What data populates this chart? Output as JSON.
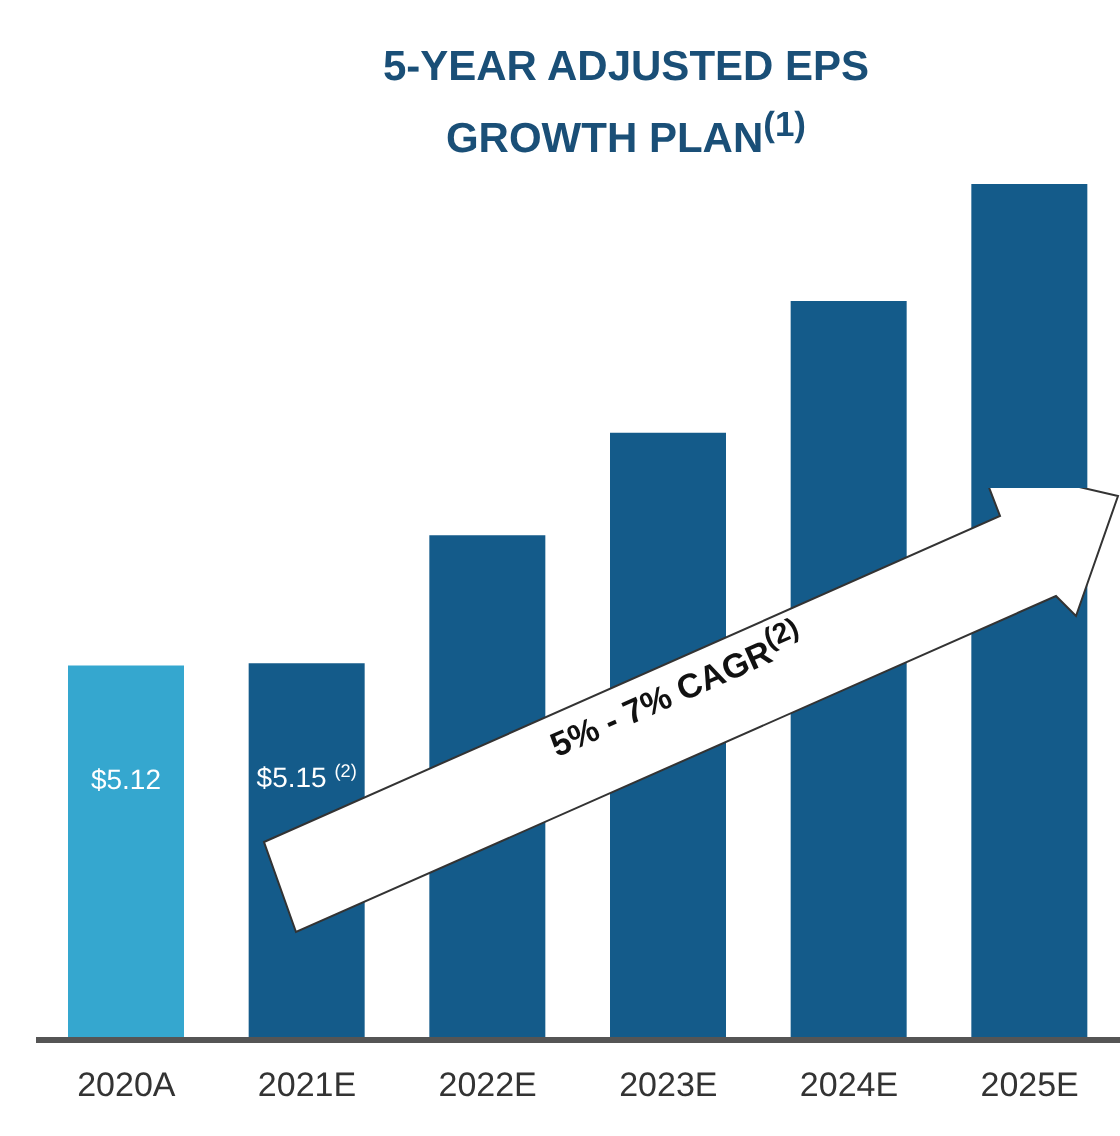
{
  "chart_data": {
    "type": "bar",
    "title": "5-YEAR ADJUSTED EPS GROWTH PLAN$^{(1)}$",
    "categories": [
      "2020A",
      "2021E",
      "2022E",
      "2023E",
      "2024E",
      "2025E"
    ],
    "values": [
      5.12,
      5.15,
      6.9,
      8.3,
      10.1,
      11.7
    ],
    "colors": [
      "#35a7cf",
      "#145b8a",
      "#145b8a",
      "#145b8a",
      "#145b8a",
      "#145b8a"
    ],
    "value_labels": [
      "$5.12",
      "$5.15 $^{(2)}$",
      null,
      null,
      null,
      null
    ],
    "annotations": [
      "5% - 7% CAGR$^{(2)}$"
    ],
    "grid": false,
    "legend": false
  }
}
